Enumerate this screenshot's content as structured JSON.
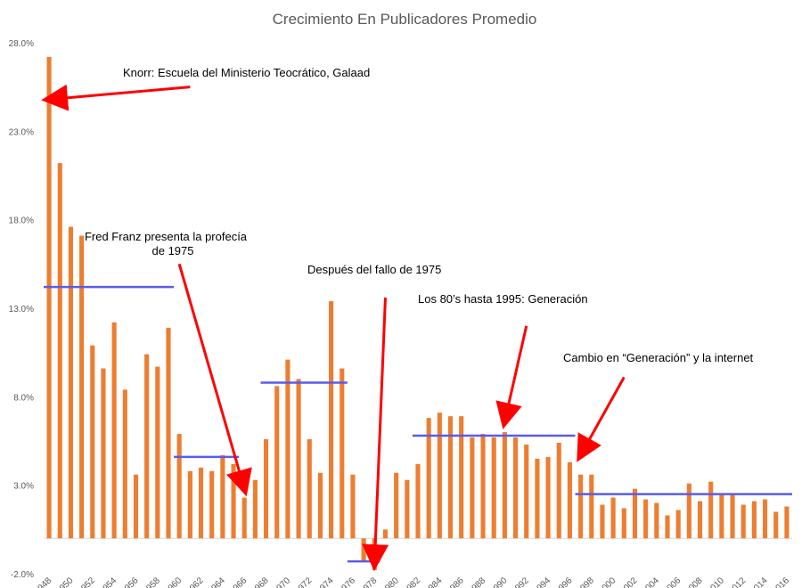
{
  "chart_data": {
    "type": "bar",
    "title": "Crecimiento En Publicadores Promedio",
    "xlabel": "",
    "ylabel": "",
    "ylim": [
      -2.0,
      28.0
    ],
    "y_ticks": [
      "-2.0%",
      "3.0%",
      "8.0%",
      "13.0%",
      "18.0%",
      "23.0%",
      "28.0%"
    ],
    "y_tick_values": [
      -2,
      3,
      8,
      13,
      18,
      23,
      28
    ],
    "grid": false,
    "legend": "none",
    "bar_color": "#ED7D31",
    "categories": [
      "1948",
      "1949",
      "1950",
      "1951",
      "1952",
      "1953",
      "1954",
      "1955",
      "1956",
      "1957",
      "1958",
      "1959",
      "1960",
      "1961",
      "1962",
      "1963",
      "1964",
      "1965",
      "1966",
      "1967",
      "1968",
      "1969",
      "1970",
      "1971",
      "1972",
      "1973",
      "1974",
      "1975",
      "1976",
      "1977",
      "1978",
      "1979",
      "1980",
      "1981",
      "1982",
      "1983",
      "1984",
      "1985",
      "1986",
      "1987",
      "1988",
      "1989",
      "1990",
      "1991",
      "1992",
      "1993",
      "1994",
      "1995",
      "1996",
      "1997",
      "1998",
      "1999",
      "2000",
      "2001",
      "2002",
      "2003",
      "2004",
      "2005",
      "2006",
      "2007",
      "2008",
      "2009",
      "2010",
      "2011",
      "2012",
      "2013",
      "2014",
      "2015",
      "2016"
    ],
    "x_tick_labels": [
      "1948",
      "1950",
      "1952",
      "1954",
      "1956",
      "1958",
      "1960",
      "1962",
      "1964",
      "1966",
      "1968",
      "1970",
      "1972",
      "1974",
      "1976",
      "1978",
      "1980",
      "1982",
      "1984",
      "1986",
      "1988",
      "1990",
      "1992",
      "1994",
      "1996",
      "1998",
      "2000",
      "2002",
      "2004",
      "2006",
      "2008",
      "2010",
      "2012",
      "2014",
      "2016"
    ],
    "values": [
      27.2,
      21.2,
      17.6,
      17.1,
      10.9,
      9.6,
      12.2,
      8.4,
      3.6,
      10.4,
      9.7,
      11.9,
      5.9,
      3.8,
      4.0,
      3.8,
      4.7,
      4.2,
      2.3,
      3.3,
      5.6,
      8.6,
      10.1,
      9.0,
      5.6,
      3.7,
      13.4,
      9.6,
      3.6,
      -1.3,
      -1.8,
      0.5,
      3.7,
      3.3,
      4.2,
      6.8,
      7.1,
      6.9,
      6.9,
      5.7,
      5.9,
      5.7,
      6.0,
      5.7,
      5.3,
      4.5,
      4.6,
      5.4,
      4.3,
      3.6,
      3.6,
      1.9,
      2.3,
      1.7,
      2.8,
      2.2,
      2.0,
      1.3,
      1.6,
      3.1,
      2.1,
      3.2,
      2.5,
      2.5,
      1.9,
      2.1,
      2.2,
      1.5,
      1.8
    ],
    "trend_lines": [
      {
        "from": "1948",
        "to": "1959",
        "value": 14.2
      },
      {
        "from": "1960",
        "to": "1965",
        "value": 4.6
      },
      {
        "from": "1968",
        "to": "1975",
        "value": 8.8
      },
      {
        "from": "1976",
        "to": "1978",
        "value": -1.3
      },
      {
        "from": "1982",
        "to": "1996",
        "value": 5.8
      },
      {
        "from": "1997",
        "to": "2016",
        "value": 2.5
      }
    ],
    "trend_color": "#5B5BE8",
    "annotations": [
      {
        "text": "Knorr: Escuela del Ministerio Teocrático, Galaad",
        "arrow_to_year": "1948",
        "arrow_to_value": 24.8,
        "arrow_from_year": "1961",
        "arrow_from_value": 25.5
      },
      {
        "text": "Fred Franz presenta la profecía",
        "text2": "de 1975",
        "arrow_to_year": "1966",
        "arrow_to_value": 2.8,
        "arrow_from_year": "1960",
        "arrow_from_value": 15.5
      },
      {
        "text": "Después del fallo de 1975",
        "arrow_to_year": "1978",
        "arrow_to_value": -1.4,
        "arrow_from_year": "1979",
        "arrow_from_value": 13.6
      },
      {
        "text": "Los 80’s hasta 1995: Generación",
        "arrow_to_year": "1990",
        "arrow_to_value": 6.6,
        "arrow_from_year": "1992",
        "arrow_from_value": 12.0
      },
      {
        "text": "Cambio en “Generación” y la internet",
        "arrow_to_year": "1997",
        "arrow_to_value": 4.7,
        "arrow_from_year": "2001",
        "arrow_from_value": 9.1
      }
    ],
    "annotation_color": "#FF0000"
  }
}
